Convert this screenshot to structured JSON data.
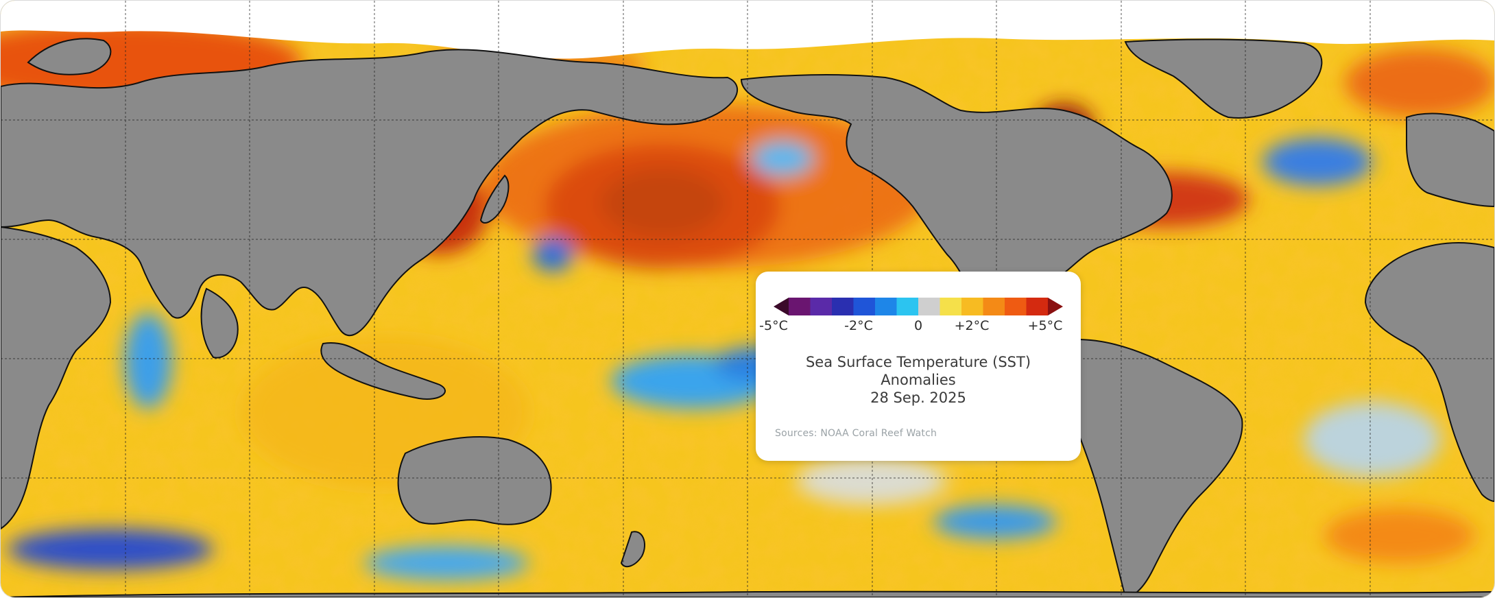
{
  "map": {
    "graticule": {
      "columns": 12,
      "rows": 5,
      "color": "#202020"
    },
    "land_color": "#8a8a8a",
    "ice_color": "#ffffff"
  },
  "legend": {
    "ticks": [
      "-5°C",
      "-2°C",
      "0",
      "+2°C",
      "+5°C"
    ],
    "colors": [
      "#3b0a2a",
      "#6a1570",
      "#5a2aa8",
      "#2a2fb0",
      "#1f55d8",
      "#1e86e8",
      "#2cc4f0",
      "#cfcfcf",
      "#f5e04a",
      "#f7bb22",
      "#f48a16",
      "#ef5b12",
      "#d42a10",
      "#8a1010"
    ],
    "title_lines": [
      "Sea Surface Temperature (SST)",
      "Anomalies",
      "28 Sep. 2025"
    ],
    "sources": "Sources:  NOAA Coral Reef Watch"
  }
}
